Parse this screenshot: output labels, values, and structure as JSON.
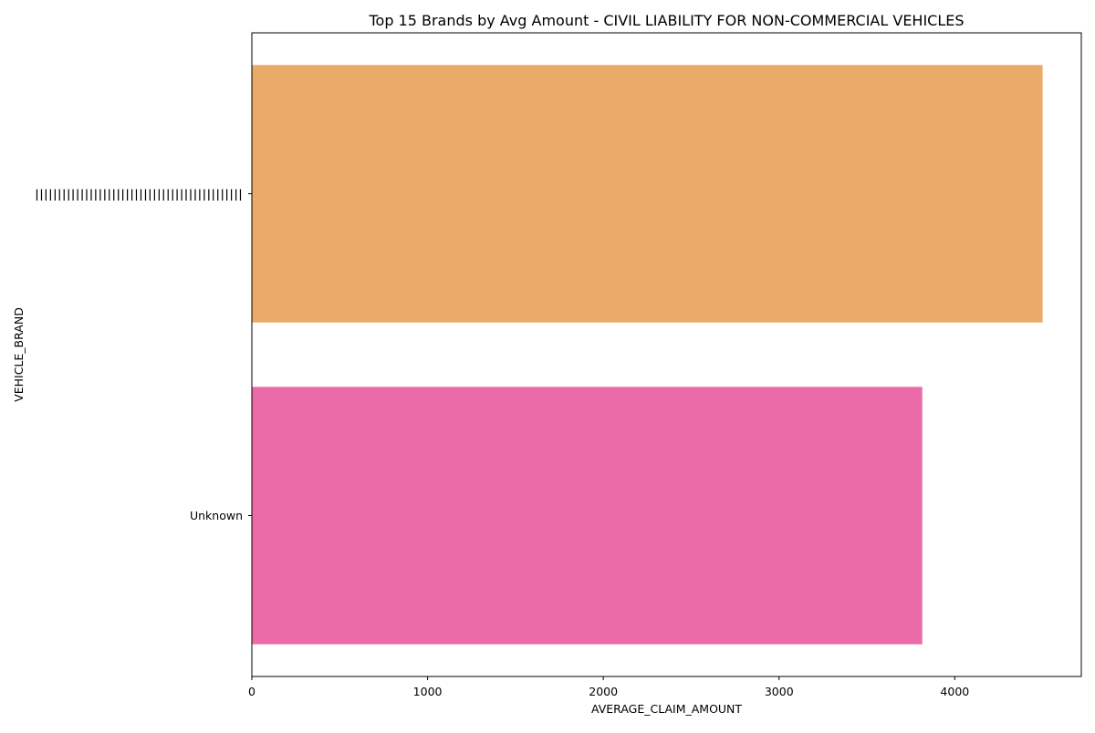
{
  "chart_data": {
    "type": "bar",
    "orientation": "horizontal",
    "title": "Top 15 Brands by Avg Amount - CIVIL LIABILITY FOR NON-COMMERCIAL VEHICLES",
    "xlabel": "AVERAGE_CLAIM_AMOUNT",
    "ylabel": "VEHICLE_BRAND",
    "categories": [
      "||||||||||||||||||||||||||||||||||||||||||||||",
      "Unknown"
    ],
    "values": [
      4500,
      3815
    ],
    "colors": [
      "#EAAA6A",
      "#EB6BA9"
    ],
    "xlim": [
      0,
      4720
    ],
    "xticks": [
      0,
      1000,
      2000,
      3000,
      4000
    ],
    "xtick_labels": [
      "0",
      "1000",
      "2000",
      "3000",
      "4000"
    ],
    "grid": false,
    "legend": "none"
  }
}
